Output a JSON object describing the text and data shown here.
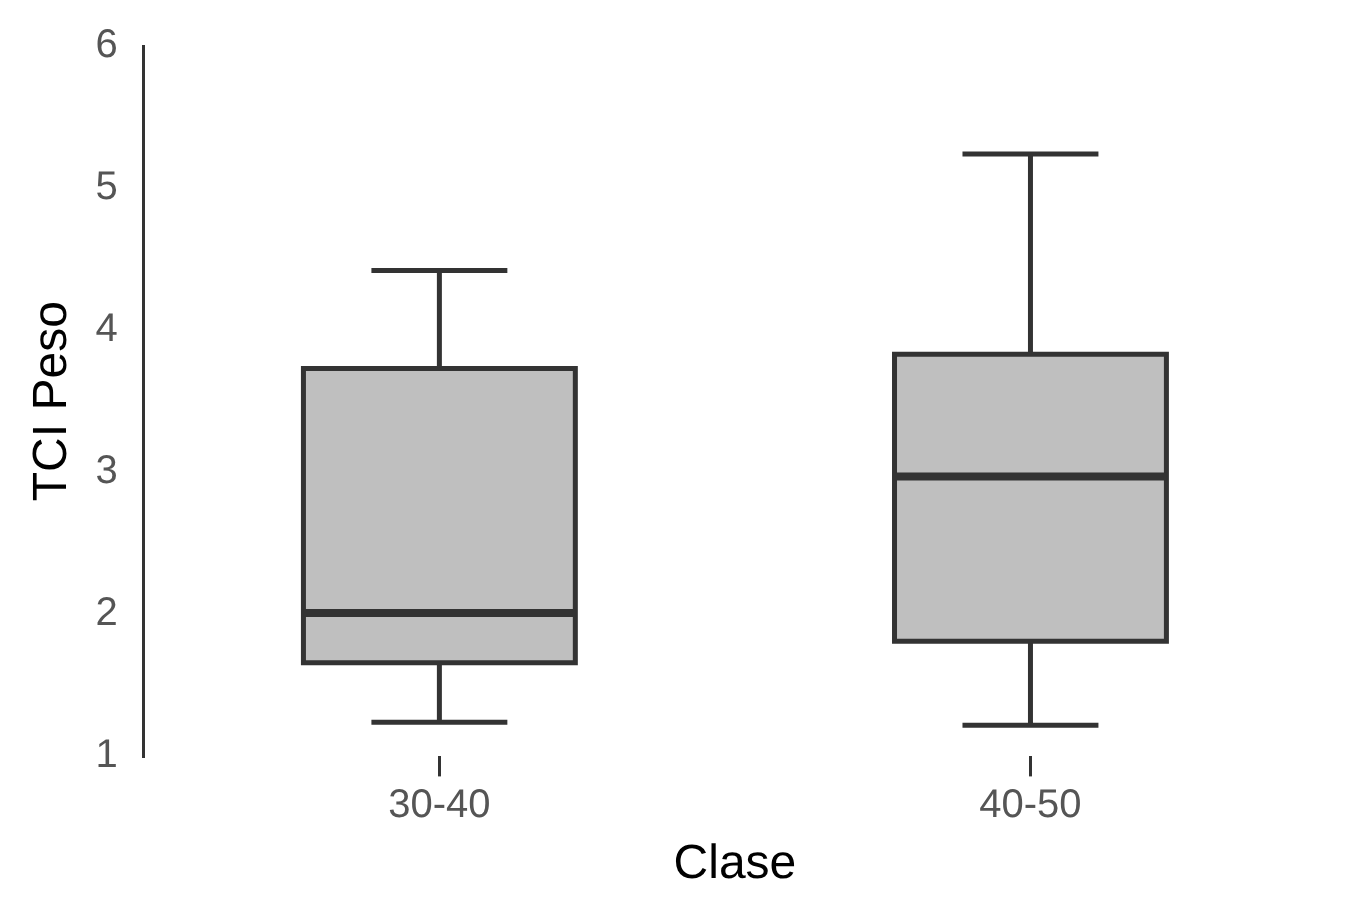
{
  "chart_data": {
    "type": "box",
    "xlabel": "Clase",
    "ylabel": "TCI Peso",
    "categories": [
      "30-40",
      "40-50"
    ],
    "color": "#bfbfbf",
    "ylim": [
      1,
      6
    ],
    "yticks": [
      1,
      2,
      3,
      4,
      5,
      6
    ],
    "boxes": [
      {
        "low": 1.24,
        "q1": 1.66,
        "median": 2.01,
        "q3": 3.73,
        "high": 4.42
      },
      {
        "low": 1.22,
        "q1": 1.81,
        "median": 2.97,
        "q3": 3.83,
        "high": 5.24
      }
    ]
  }
}
